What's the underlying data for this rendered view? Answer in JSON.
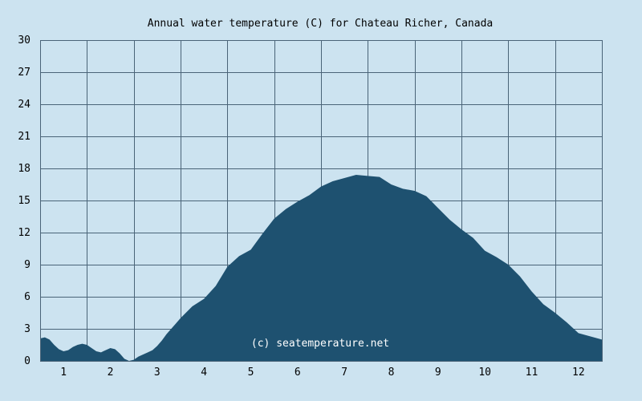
{
  "chart_data": {
    "type": "area",
    "title": "Annual water temperature (C) for Chateau Richer, Canada",
    "xlabel": "",
    "ylabel": "",
    "xlim": [
      0.5,
      12.5
    ],
    "ylim": [
      0,
      30
    ],
    "yticks": [
      0,
      3,
      6,
      9,
      12,
      15,
      18,
      21,
      24,
      27,
      30
    ],
    "xticks": [
      1,
      2,
      3,
      4,
      5,
      6,
      7,
      8,
      9,
      10,
      11,
      12
    ],
    "grid": true,
    "fill_color": "#1e5170",
    "background_color": "#cce3f0",
    "grid_color": "#4a6478",
    "watermark": "(c) seatemperature.net",
    "series": [
      {
        "x": [
          0.5,
          0.6,
          0.7,
          0.8,
          0.9,
          1.0,
          1.1,
          1.2,
          1.3,
          1.4,
          1.5,
          1.6,
          1.7,
          1.8,
          1.9,
          2.0,
          2.1,
          2.2,
          2.3,
          2.4,
          2.5,
          2.6,
          2.7,
          2.8,
          2.9,
          3.0,
          3.1,
          3.2,
          3.3,
          3.4,
          3.5,
          3.75,
          4.0,
          4.25,
          4.5,
          4.75,
          5.0,
          5.25,
          5.5,
          5.75,
          6.0,
          6.25,
          6.5,
          6.75,
          7.0,
          7.25,
          7.5,
          7.75,
          8.0,
          8.25,
          8.5,
          8.75,
          9.0,
          9.25,
          9.5,
          9.75,
          10.0,
          10.25,
          10.5,
          10.75,
          11.0,
          11.25,
          11.5,
          11.75,
          12.0,
          12.25,
          12.5
        ],
        "values": [
          2.1,
          2.2,
          2.0,
          1.5,
          1.1,
          0.9,
          1.0,
          1.3,
          1.5,
          1.6,
          1.5,
          1.2,
          0.9,
          0.8,
          1.0,
          1.2,
          1.1,
          0.7,
          0.2,
          0.0,
          0.1,
          0.4,
          0.6,
          0.8,
          1.0,
          1.4,
          1.9,
          2.5,
          3.0,
          3.5,
          4.0,
          5.1,
          5.8,
          7.0,
          8.8,
          9.8,
          10.4,
          11.9,
          13.3,
          14.2,
          14.9,
          15.5,
          16.3,
          16.8,
          17.1,
          17.4,
          17.3,
          17.2,
          16.5,
          16.1,
          15.9,
          15.4,
          14.3,
          13.2,
          12.3,
          11.5,
          10.3,
          9.7,
          9.0,
          7.9,
          6.5,
          5.3,
          4.5,
          3.6,
          2.6,
          2.3,
          2.0
        ]
      }
    ]
  }
}
